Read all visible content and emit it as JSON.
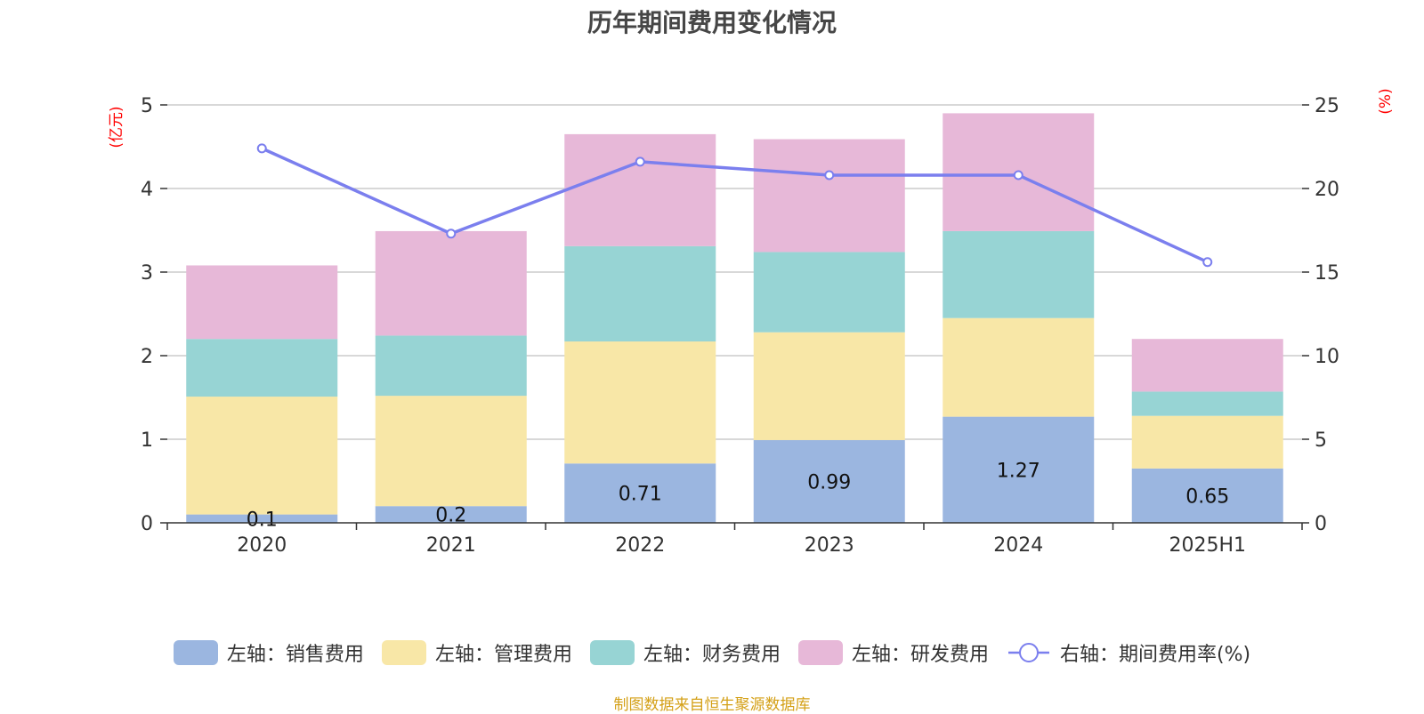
{
  "source": "制图数据来自恒生聚源数据库",
  "colors": {
    "sales": "#9bb6e0",
    "admin": "#f8e7a7",
    "finance": "#97d4d4",
    "rnd": "#e7b8d8",
    "rate": "#7b7fee",
    "axis_label": "#ff0000",
    "source": "#d4a017"
  },
  "chart_data": {
    "type": "bar",
    "title": "历年期间费用变化情况",
    "categories": [
      "2020",
      "2021",
      "2022",
      "2023",
      "2024",
      "2025H1"
    ],
    "y_left_label": "(亿元)",
    "y_right_label": "(%)",
    "y_left_ticks": [
      "0",
      "1",
      "2",
      "3",
      "4",
      "5"
    ],
    "y_right_ticks": [
      "0",
      "5",
      "10",
      "15",
      "20",
      "25"
    ],
    "ylim_left": [
      0,
      5
    ],
    "ylim_right": [
      0,
      25
    ],
    "grid": true,
    "legend_position": "bottom",
    "series": [
      {
        "name": "左轴：销售费用",
        "axis": "left",
        "kind": "bar",
        "color": "#9bb6e0",
        "values": [
          0.1,
          0.2,
          0.71,
          0.99,
          1.27,
          0.65
        ],
        "labels": [
          "0.1",
          "0.2",
          "0.71",
          "0.99",
          "1.27",
          "0.65"
        ]
      },
      {
        "name": "左轴：管理费用",
        "axis": "left",
        "kind": "bar",
        "color": "#f8e7a7",
        "values": [
          1.41,
          1.32,
          1.46,
          1.29,
          1.18,
          0.63
        ]
      },
      {
        "name": "左轴：财务费用",
        "axis": "left",
        "kind": "bar",
        "color": "#97d4d4",
        "values": [
          0.69,
          0.72,
          1.14,
          0.96,
          1.04,
          0.29
        ]
      },
      {
        "name": "左轴：研发费用",
        "axis": "left",
        "kind": "bar",
        "color": "#e7b8d8",
        "values": [
          0.88,
          1.25,
          1.34,
          1.35,
          1.41,
          0.63
        ]
      },
      {
        "name": "右轴：期间费用率(%)",
        "axis": "right",
        "kind": "line",
        "color": "#7b7fee",
        "values": [
          22.4,
          17.3,
          21.6,
          20.8,
          20.8,
          15.6
        ]
      }
    ]
  }
}
